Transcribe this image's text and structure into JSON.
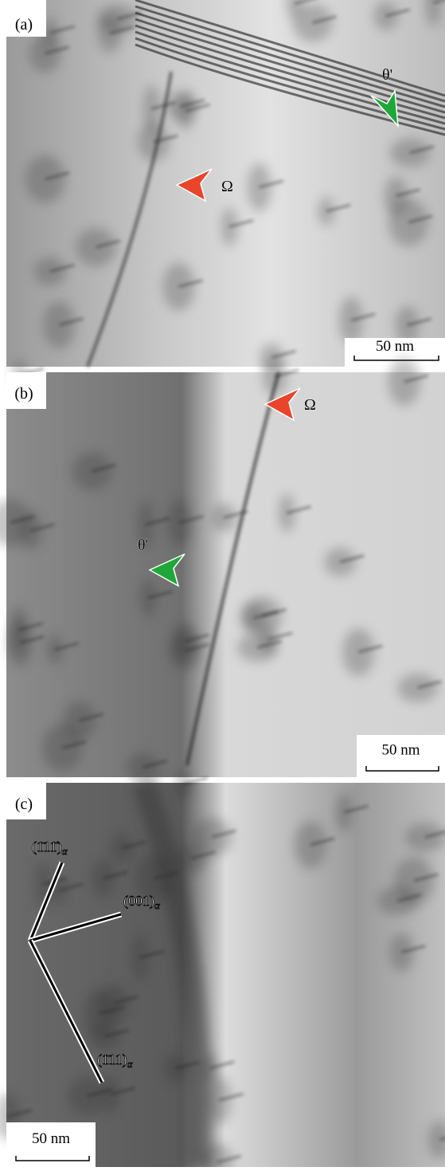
{
  "panels": [
    {
      "label": "(a)",
      "annotations": [
        {
          "text": "θ'",
          "color": "#1fa83a"
        },
        {
          "text": "Ω",
          "color": "#e8452a"
        }
      ],
      "scale_bar": "50 nm"
    },
    {
      "label": "(b)",
      "annotations": [
        {
          "text": "Ω",
          "color": "#e8452a"
        },
        {
          "text": "θ'",
          "color": "#1fa83a"
        }
      ],
      "scale_bar": "50 nm"
    },
    {
      "label": "(c)",
      "directions": [
        {
          "plane": "(1̄11̄)",
          "sub": "α"
        },
        {
          "plane": "(001)",
          "sub": "α"
        },
        {
          "plane": "(1̄11)",
          "sub": "α"
        }
      ],
      "scale_bar": "50 nm"
    }
  ]
}
